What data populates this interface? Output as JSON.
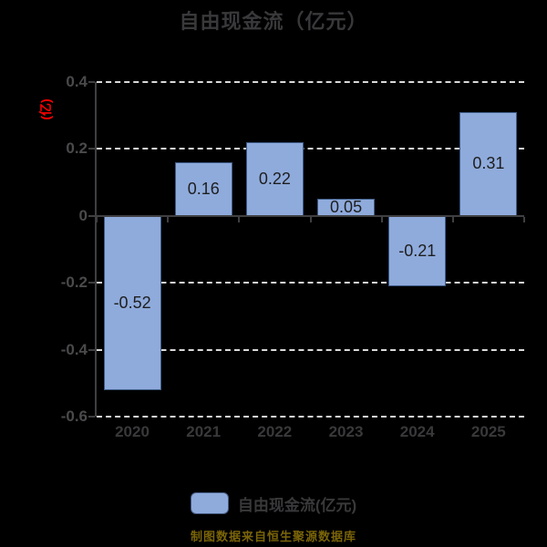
{
  "title": "自由现金流（亿元）",
  "y_axis_name": "(亿)",
  "legend": {
    "label": "自由现金流(亿元)"
  },
  "footer": {
    "text": "制图数据来自恒生聚源数据库"
  },
  "colors": {
    "background": "#000000",
    "bar_fill": "#8fabdc",
    "bar_border": "#3d5a85",
    "gridline": "#d9d9d9",
    "axis_line": "#3f3f42",
    "title_text": "#39393b",
    "tick_text": "#4a4a4c",
    "value_text": "#1e1e1e",
    "y_axis_name_text": "#ff0000",
    "footer_text": "#7a6408"
  },
  "chart_data": {
    "type": "bar",
    "title": "自由现金流（亿元）",
    "ylabel": "(亿)",
    "categories": [
      "2020",
      "2021",
      "2022",
      "2023",
      "2024",
      "2025"
    ],
    "series": [
      {
        "name": "自由现金流(亿元)",
        "values": [
          -0.52,
          0.16,
          0.22,
          0.05,
          -0.21,
          0.31
        ]
      }
    ],
    "value_labels": [
      "-0.52",
      "0.16",
      "0.22",
      "0.05",
      "-0.21",
      "0.31"
    ],
    "ylim": [
      -0.6,
      0.4
    ],
    "yticks": [
      {
        "value": 0.4,
        "label": "0.4"
      },
      {
        "value": 0.2,
        "label": "0.2"
      },
      {
        "value": 0,
        "label": "0"
      },
      {
        "value": -0.2,
        "label": "-0.2"
      },
      {
        "value": -0.4,
        "label": "-0.4"
      },
      {
        "value": -0.6,
        "label": "-0.6"
      }
    ],
    "grid": true,
    "legend_position": "bottom"
  }
}
